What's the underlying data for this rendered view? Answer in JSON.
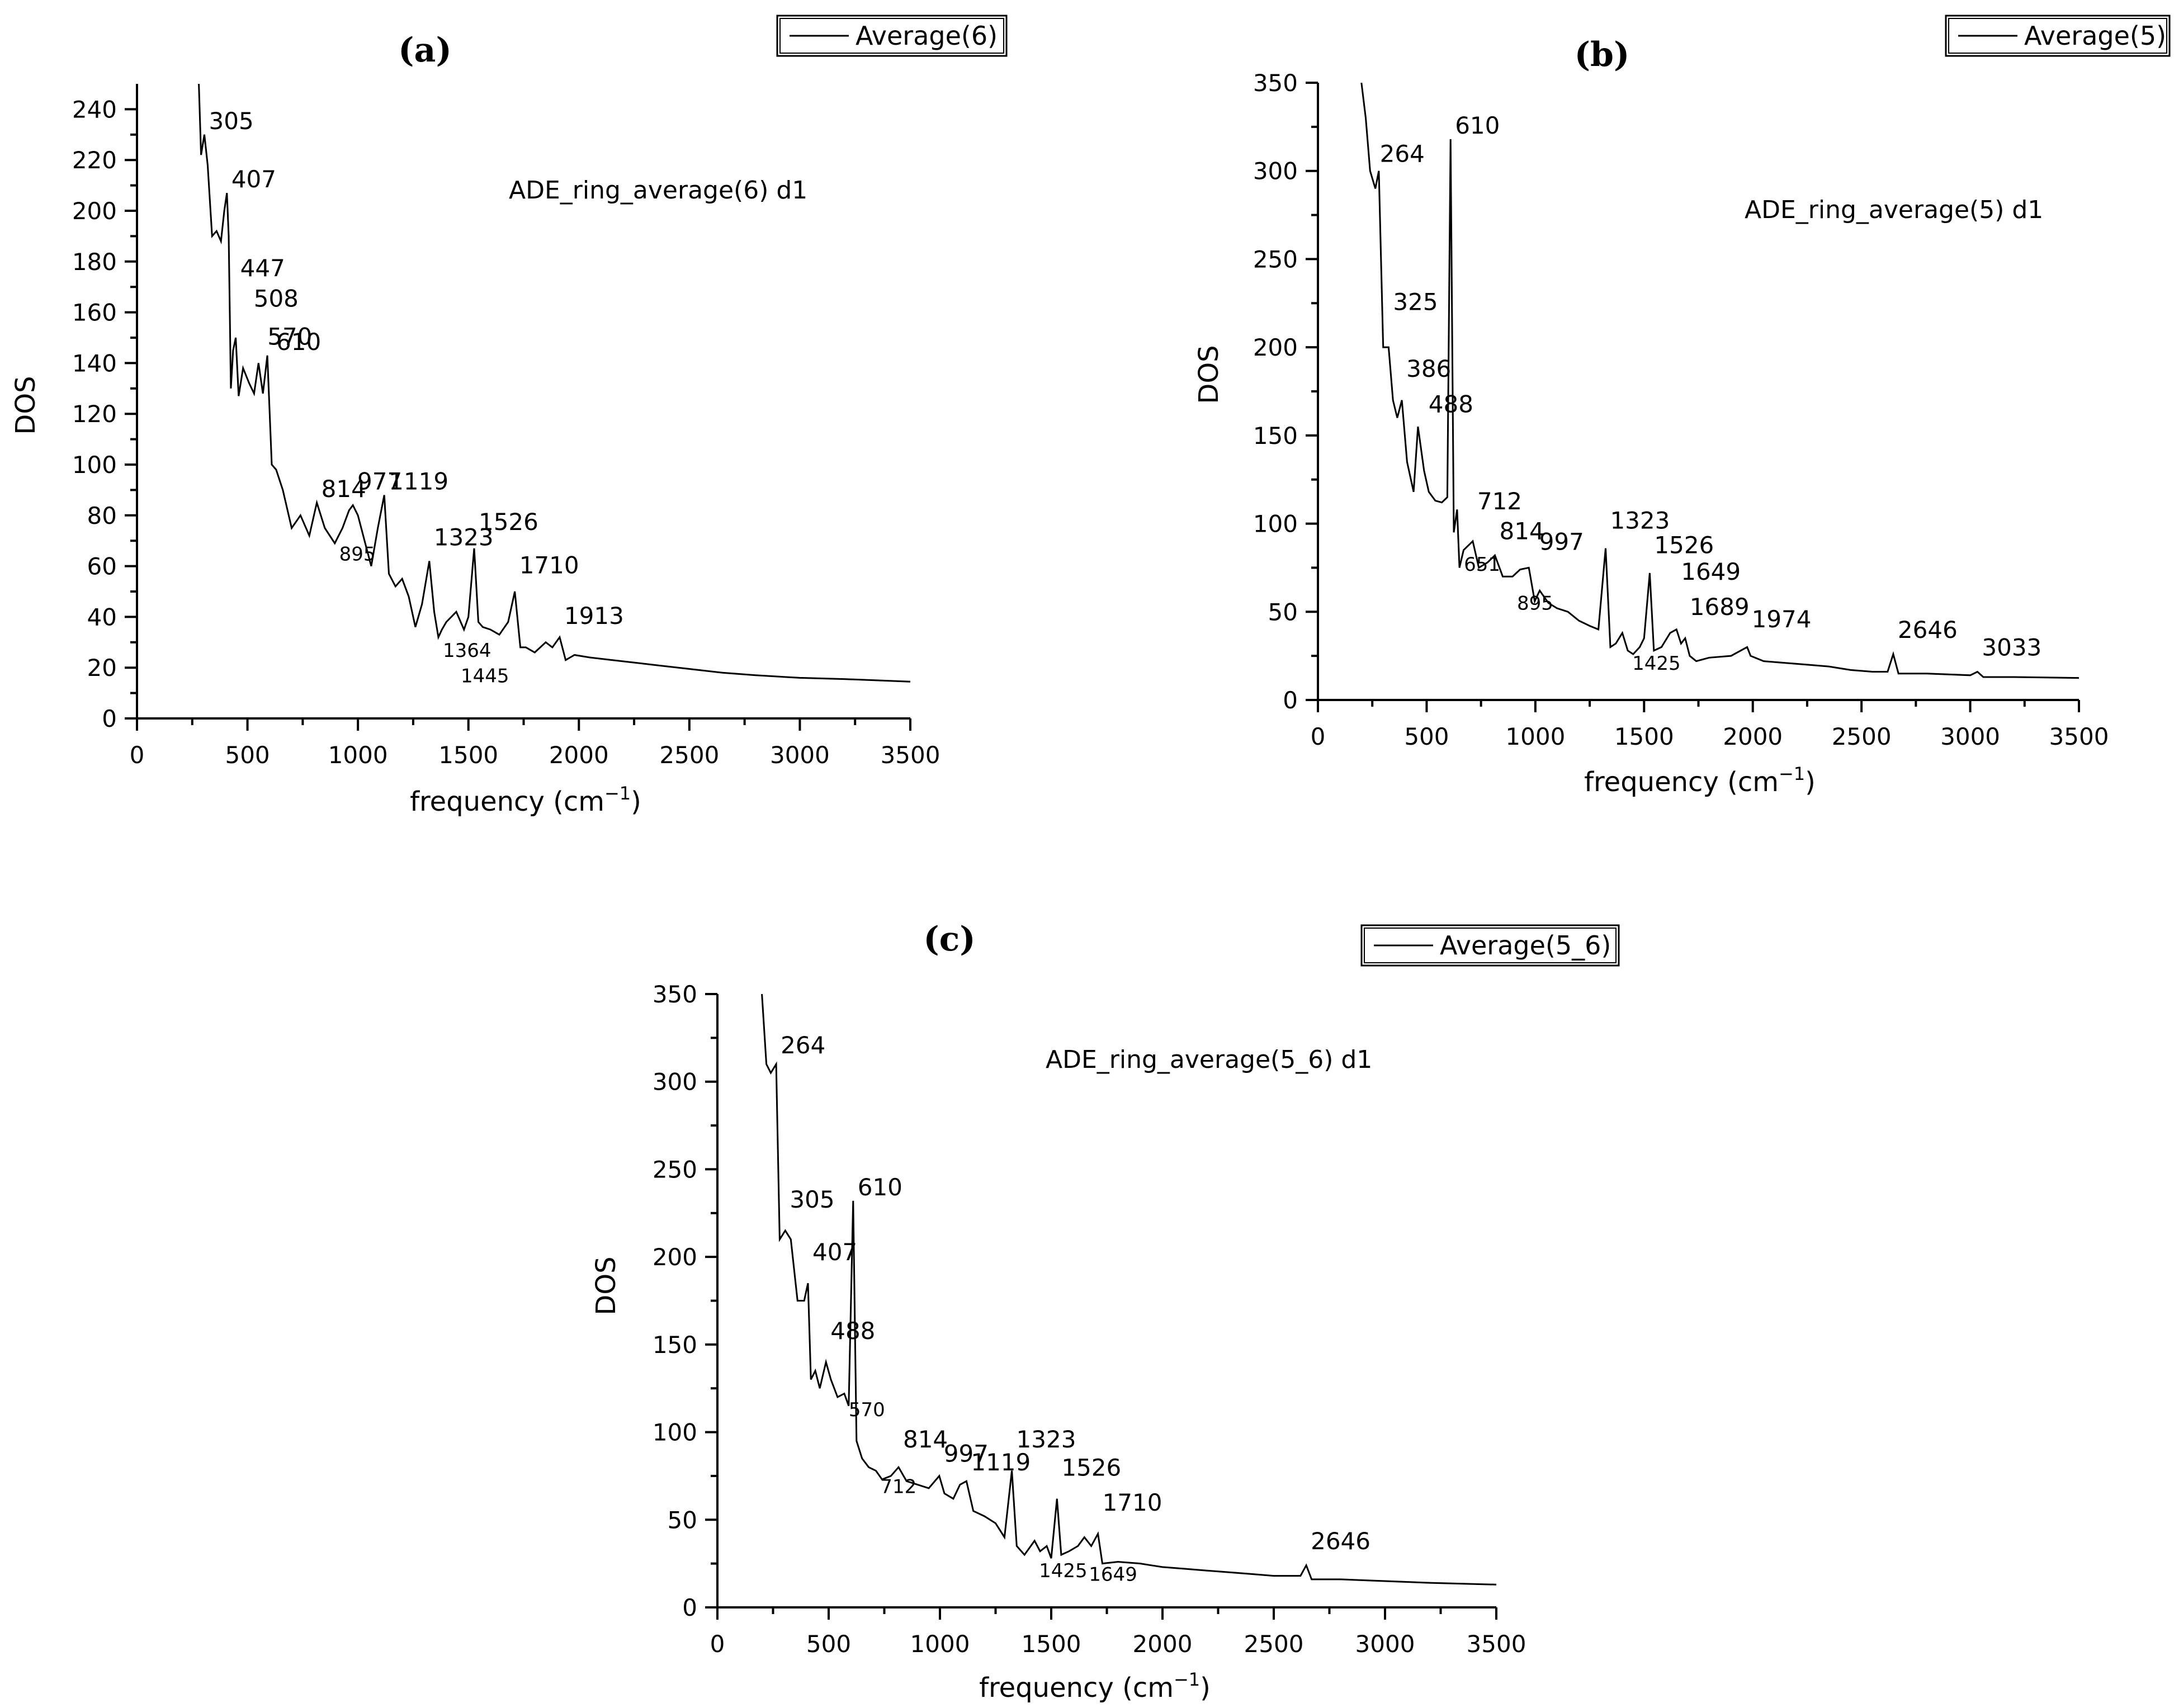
{
  "chart_data": [
    {
      "id": "a",
      "type": "line",
      "panel_label": "(a)",
      "annotation": "ADE_ring_average(6) d1",
      "legend": "Average(6)",
      "xlabel_main": "frequency (cm",
      "xlabel_sup": "−1",
      "xlabel_tail": ")",
      "ylabel": "DOS",
      "xlim": [
        0,
        3500
      ],
      "ylim": [
        0,
        250
      ],
      "xticks": [
        0,
        500,
        1000,
        1500,
        2000,
        2500,
        3000,
        3500
      ],
      "yticks": [
        0,
        20,
        40,
        60,
        80,
        100,
        120,
        140,
        160,
        180,
        200,
        220,
        240
      ],
      "x": [
        280,
        290,
        305,
        320,
        340,
        360,
        380,
        395,
        407,
        415,
        425,
        435,
        447,
        460,
        480,
        508,
        530,
        550,
        570,
        590,
        610,
        630,
        660,
        700,
        740,
        780,
        814,
        850,
        895,
        930,
        960,
        977,
        1000,
        1030,
        1060,
        1090,
        1119,
        1140,
        1170,
        1200,
        1230,
        1260,
        1290,
        1323,
        1345,
        1364,
        1380,
        1400,
        1445,
        1480,
        1500,
        1526,
        1545,
        1565,
        1600,
        1640,
        1680,
        1710,
        1735,
        1760,
        1800,
        1850,
        1880,
        1913,
        1940,
        1980,
        2050,
        2150,
        2250,
        2350,
        2450,
        2550,
        2650,
        2800,
        3000,
        3200,
        3500
      ],
      "y": [
        250,
        222,
        230,
        218,
        190,
        192,
        188,
        200,
        207,
        190,
        130,
        145,
        150,
        127,
        138,
        132,
        128,
        140,
        128,
        143,
        100,
        98,
        90,
        75,
        80,
        72,
        85,
        75,
        69,
        75,
        82,
        84,
        80,
        70,
        60,
        75,
        88,
        57,
        52,
        55,
        48,
        36,
        45,
        62,
        42,
        32,
        35,
        38,
        42,
        35,
        40,
        67,
        38,
        36,
        35,
        33,
        38,
        50,
        28,
        28,
        26,
        30,
        28,
        32,
        23,
        25,
        24,
        23,
        22,
        21,
        20,
        19,
        18,
        17,
        16,
        15.5,
        14.5
      ],
      "peaks": [
        {
          "x": 305,
          "y": 230,
          "text": "305",
          "small": false
        },
        {
          "x": 407,
          "y": 207,
          "text": "407",
          "small": false
        },
        {
          "x": 447,
          "y": 172,
          "text": "447",
          "small": false
        },
        {
          "x": 508,
          "y": 160,
          "text": "508",
          "small": false
        },
        {
          "x": 570,
          "y": 145,
          "text": "570",
          "small": false
        },
        {
          "x": 610,
          "y": 143,
          "text": "610",
          "small": false
        },
        {
          "x": 814,
          "y": 85,
          "text": "814",
          "small": false
        },
        {
          "x": 895,
          "y": 60,
          "text": "895",
          "small": true
        },
        {
          "x": 977,
          "y": 88,
          "text": "977",
          "small": false
        },
        {
          "x": 1119,
          "y": 88,
          "text": "1119",
          "small": false
        },
        {
          "x": 1323,
          "y": 66,
          "text": "1323",
          "small": false
        },
        {
          "x": 1364,
          "y": 22,
          "text": "1364",
          "small": true
        },
        {
          "x": 1445,
          "y": 12,
          "text": "1445",
          "small": true
        },
        {
          "x": 1526,
          "y": 72,
          "text": "1526",
          "small": false
        },
        {
          "x": 1710,
          "y": 55,
          "text": "1710",
          "small": false
        },
        {
          "x": 1913,
          "y": 35,
          "text": "1913",
          "small": false
        }
      ]
    },
    {
      "id": "b",
      "type": "line",
      "panel_label": "(b)",
      "annotation": "ADE_ring_average(5) d1",
      "legend": "Average(5)",
      "xlabel_main": "frequency (cm",
      "xlabel_sup": "−1",
      "xlabel_tail": ")",
      "ylabel": "DOS",
      "xlim": [
        0,
        3500
      ],
      "ylim": [
        0,
        350
      ],
      "xticks": [
        0,
        500,
        1000,
        1500,
        2000,
        2500,
        3000,
        3500
      ],
      "yticks": [
        0,
        50,
        100,
        150,
        200,
        250,
        300,
        350
      ],
      "x": [
        200,
        220,
        240,
        264,
        280,
        300,
        325,
        345,
        365,
        386,
        410,
        440,
        460,
        488,
        510,
        540,
        570,
        595,
        610,
        625,
        640,
        651,
        670,
        712,
        740,
        780,
        814,
        850,
        895,
        930,
        970,
        997,
        1020,
        1060,
        1100,
        1150,
        1200,
        1250,
        1290,
        1323,
        1345,
        1370,
        1400,
        1425,
        1450,
        1480,
        1500,
        1526,
        1545,
        1580,
        1620,
        1649,
        1670,
        1689,
        1710,
        1740,
        1800,
        1900,
        1974,
        1990,
        2050,
        2150,
        2250,
        2350,
        2450,
        2550,
        2620,
        2646,
        2670,
        2800,
        3000,
        3033,
        3060,
        3200,
        3500
      ],
      "y": [
        350,
        330,
        300,
        290,
        300,
        200,
        200,
        170,
        160,
        170,
        135,
        118,
        155,
        130,
        118,
        113,
        112,
        115,
        318,
        95,
        108,
        75,
        85,
        90,
        75,
        78,
        82,
        70,
        70,
        74,
        75,
        56,
        62,
        55,
        52,
        50,
        45,
        42,
        40,
        86,
        30,
        32,
        38,
        28,
        26,
        30,
        35,
        72,
        28,
        30,
        38,
        40,
        32,
        35,
        25,
        22,
        24,
        25,
        30,
        25,
        22,
        21,
        20,
        19,
        17,
        16,
        16,
        26,
        15,
        15,
        14,
        16,
        13,
        13,
        12.5
      ],
      "peaks": [
        {
          "x": 264,
          "y": 302,
          "text": "264",
          "small": false
        },
        {
          "x": 325,
          "y": 218,
          "text": "325",
          "small": false
        },
        {
          "x": 386,
          "y": 180,
          "text": "386",
          "small": false
        },
        {
          "x": 488,
          "y": 160,
          "text": "488",
          "small": false
        },
        {
          "x": 610,
          "y": 318,
          "text": "610",
          "small": false
        },
        {
          "x": 651,
          "y": 70,
          "text": "651",
          "small": true
        },
        {
          "x": 712,
          "y": 105,
          "text": "712",
          "small": false
        },
        {
          "x": 814,
          "y": 88,
          "text": "814",
          "small": false
        },
        {
          "x": 895,
          "y": 48,
          "text": "895",
          "small": true
        },
        {
          "x": 997,
          "y": 82,
          "text": "997",
          "small": false
        },
        {
          "x": 1323,
          "y": 94,
          "text": "1323",
          "small": false
        },
        {
          "x": 1425,
          "y": 14,
          "text": "1425",
          "small": true
        },
        {
          "x": 1526,
          "y": 80,
          "text": "1526",
          "small": false
        },
        {
          "x": 1649,
          "y": 65,
          "text": "1649",
          "small": false
        },
        {
          "x": 1689,
          "y": 45,
          "text": "1689",
          "small": false
        },
        {
          "x": 1974,
          "y": 38,
          "text": "1974",
          "small": false
        },
        {
          "x": 2646,
          "y": 32,
          "text": "2646",
          "small": false
        },
        {
          "x": 3033,
          "y": 22,
          "text": "3033",
          "small": false
        }
      ]
    },
    {
      "id": "c",
      "type": "line",
      "panel_label": "(c)",
      "annotation": "ADE_ring_average(5_6) d1",
      "legend": "Average(5_6)",
      "xlabel_main": "frequency (cm",
      "xlabel_sup": "−1",
      "xlabel_tail": ")",
      "ylabel": "DOS",
      "xlim": [
        0,
        3500
      ],
      "ylim": [
        0,
        350
      ],
      "xticks": [
        0,
        500,
        1000,
        1500,
        2000,
        2500,
        3000,
        3500
      ],
      "yticks": [
        0,
        50,
        100,
        150,
        200,
        250,
        300,
        350
      ],
      "x": [
        200,
        220,
        240,
        264,
        280,
        305,
        330,
        360,
        390,
        407,
        420,
        440,
        460,
        488,
        510,
        540,
        570,
        590,
        610,
        625,
        650,
        680,
        712,
        740,
        780,
        814,
        850,
        900,
        950,
        997,
        1020,
        1060,
        1090,
        1119,
        1150,
        1200,
        1250,
        1290,
        1323,
        1345,
        1380,
        1425,
        1450,
        1480,
        1500,
        1526,
        1545,
        1580,
        1620,
        1649,
        1680,
        1710,
        1730,
        1800,
        1900,
        1950,
        2000,
        2100,
        2200,
        2300,
        2400,
        2500,
        2620,
        2646,
        2670,
        2800,
        3000,
        3200,
        3500
      ],
      "y": [
        350,
        310,
        305,
        310,
        210,
        215,
        210,
        175,
        175,
        185,
        130,
        135,
        125,
        140,
        130,
        120,
        122,
        115,
        232,
        95,
        85,
        80,
        78,
        73,
        75,
        80,
        72,
        70,
        68,
        75,
        65,
        62,
        70,
        72,
        55,
        52,
        48,
        40,
        78,
        35,
        30,
        38,
        32,
        35,
        28,
        62,
        30,
        32,
        35,
        40,
        35,
        42,
        25,
        26,
        25,
        24,
        23,
        22,
        21,
        20,
        19,
        18,
        18,
        24,
        16,
        16,
        15,
        14,
        13
      ],
      "peaks": [
        {
          "x": 264,
          "y": 313,
          "text": "264",
          "small": false
        },
        {
          "x": 305,
          "y": 225,
          "text": "305",
          "small": false
        },
        {
          "x": 407,
          "y": 195,
          "text": "407",
          "small": false
        },
        {
          "x": 488,
          "y": 150,
          "text": "488",
          "small": false
        },
        {
          "x": 570,
          "y": 106,
          "text": "570",
          "small": true
        },
        {
          "x": 610,
          "y": 232,
          "text": "610",
          "small": false
        },
        {
          "x": 712,
          "y": 62,
          "text": "712",
          "small": true
        },
        {
          "x": 814,
          "y": 88,
          "text": "814",
          "small": false
        },
        {
          "x": 997,
          "y": 80,
          "text": "997",
          "small": false
        },
        {
          "x": 1119,
          "y": 75,
          "text": "1119",
          "small": false
        },
        {
          "x": 1323,
          "y": 88,
          "text": "1323",
          "small": false
        },
        {
          "x": 1425,
          "y": 14,
          "text": "1425",
          "small": true
        },
        {
          "x": 1526,
          "y": 72,
          "text": "1526",
          "small": false
        },
        {
          "x": 1649,
          "y": 12,
          "text": "1649",
          "small": true
        },
        {
          "x": 1710,
          "y": 52,
          "text": "1710",
          "small": false
        },
        {
          "x": 2646,
          "y": 30,
          "text": "2646",
          "small": false
        }
      ]
    }
  ]
}
